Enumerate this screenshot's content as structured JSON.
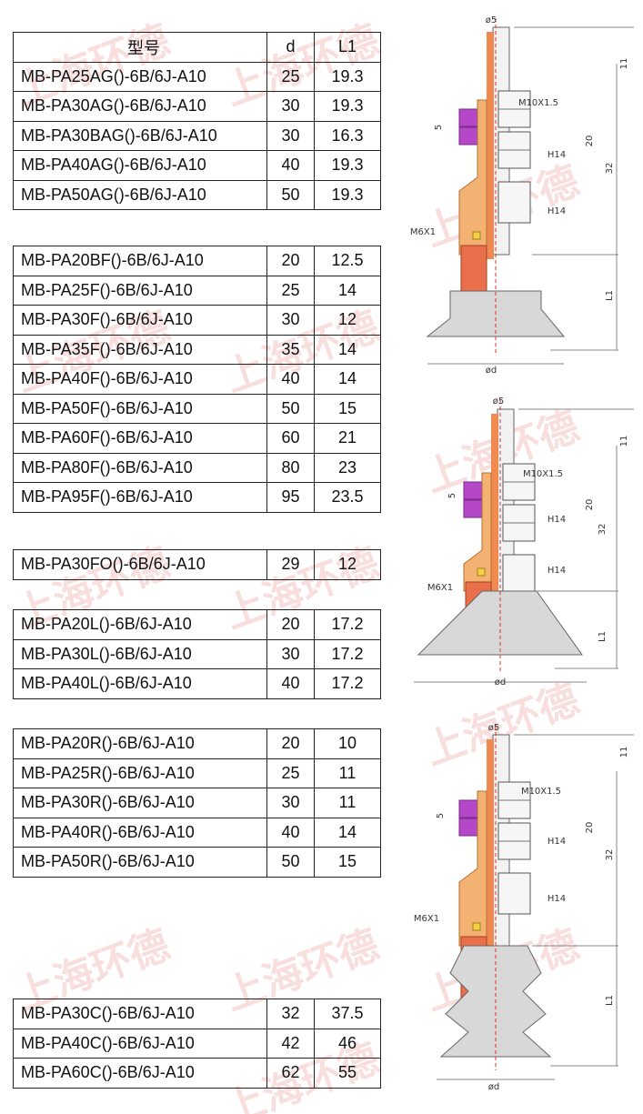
{
  "watermark": "上海环德",
  "tables": [
    {
      "header": [
        "型号",
        "d",
        "L1"
      ],
      "rows": [
        [
          "MB-PA25AG()-6B/6J-A10",
          "25",
          "19.3"
        ],
        [
          "MB-PA30AG()-6B/6J-A10",
          "30",
          "19.3"
        ],
        [
          "MB-PA30BAG()-6B/6J-A10",
          "30",
          "16.3"
        ],
        [
          "MB-PA40AG()-6B/6J-A10",
          "40",
          "19.3"
        ],
        [
          "MB-PA50AG()-6B/6J-A10",
          "50",
          "19.3"
        ]
      ]
    },
    {
      "rows": [
        [
          "MB-PA20BF()-6B/6J-A10",
          "20",
          "12.5"
        ],
        [
          "MB-PA25F()-6B/6J-A10",
          "25",
          "14"
        ],
        [
          "MB-PA30F()-6B/6J-A10",
          "30",
          "12"
        ],
        [
          "MB-PA35F()-6B/6J-A10",
          "35",
          "14"
        ],
        [
          "MB-PA40F()-6B/6J-A10",
          "40",
          "14"
        ],
        [
          "MB-PA50F()-6B/6J-A10",
          "50",
          "15"
        ],
        [
          "MB-PA60F()-6B/6J-A10",
          "60",
          "21"
        ],
        [
          "MB-PA80F()-6B/6J-A10",
          "80",
          "23"
        ],
        [
          "MB-PA95F()-6B/6J-A10",
          "95",
          "23.5"
        ]
      ]
    },
    {
      "rows": [
        [
          "MB-PA30FO()-6B/6J-A10",
          "29",
          "12"
        ]
      ]
    },
    {
      "rows": [
        [
          "MB-PA20L()-6B/6J-A10",
          "20",
          "17.2"
        ],
        [
          "MB-PA30L()-6B/6J-A10",
          "30",
          "17.2"
        ],
        [
          "MB-PA40L()-6B/6J-A10",
          "40",
          "17.2"
        ]
      ]
    },
    {
      "rows": [
        [
          "MB-PA20R()-6B/6J-A10",
          "20",
          "10"
        ],
        [
          "MB-PA25R()-6B/6J-A10",
          "25",
          "11"
        ],
        [
          "MB-PA30R()-6B/6J-A10",
          "30",
          "11"
        ],
        [
          "MB-PA40R()-6B/6J-A10",
          "40",
          "14"
        ],
        [
          "MB-PA50R()-6B/6J-A10",
          "50",
          "15"
        ]
      ]
    },
    {
      "rows": [
        [
          "MB-PA30C()-6B/6J-A10",
          "32",
          "37.5"
        ],
        [
          "MB-PA40C()-6B/6J-A10",
          "42",
          "46"
        ],
        [
          "MB-PA60C()-6B/6J-A10",
          "62",
          "55"
        ]
      ]
    }
  ],
  "drawings": [
    {
      "labels": [
        "ø5",
        "11",
        "M10X1.5",
        "5",
        "20",
        "H14",
        "32",
        "H14",
        "M6X1",
        "L1",
        "ød"
      ]
    },
    {
      "labels": [
        "ø5",
        "11",
        "M10X1.5",
        "5",
        "20",
        "H14",
        "32",
        "H14",
        "M6X1",
        "L1",
        "ød"
      ]
    },
    {
      "labels": [
        "ø5",
        "11",
        "M10X1.5",
        "5",
        "20",
        "H14",
        "32",
        "H14",
        "M6X1",
        "L1",
        "ød"
      ]
    }
  ]
}
